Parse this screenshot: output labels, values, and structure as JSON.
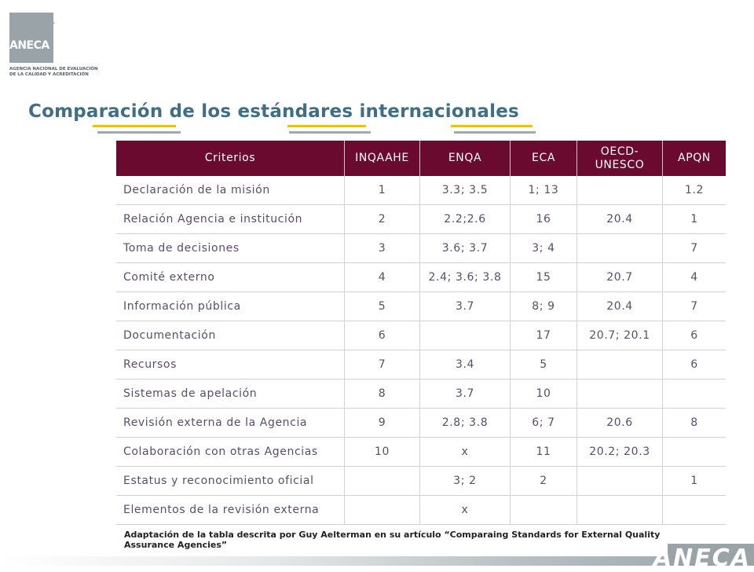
{
  "logo": {
    "name": "ANECA",
    "subtitle_lines": [
      "AGENCIA NACIONAL DE EVALUACIÓN",
      "DE LA CALIDAD Y ACREDITACIÓN"
    ]
  },
  "title": "Comparación de los estándares internacionales",
  "table": {
    "headers": [
      "Criterios",
      "INQAAHE",
      "ENQA",
      "ECA",
      "OECD-\nUNESCO",
      "APQN"
    ],
    "rows": [
      [
        "Declaración de la misión",
        "1",
        "3.3; 3.5",
        "1; 13",
        "",
        "1.2"
      ],
      [
        "Relación Agencia e institución",
        "2",
        "2.2;2.6",
        "16",
        "20.4",
        "1"
      ],
      [
        "Toma de decisiones",
        "3",
        "3.6; 3.7",
        "3; 4",
        "",
        "7"
      ],
      [
        "Comité externo",
        "4",
        "2.4; 3.6; 3.8",
        "15",
        "20.7",
        "4"
      ],
      [
        "Información pública",
        "5",
        "3.7",
        "8; 9",
        "20.4",
        "7"
      ],
      [
        "Documentación",
        "6",
        "",
        "17",
        "20.7; 20.1",
        "6"
      ],
      [
        "Recursos",
        "7",
        "3.4",
        "5",
        "",
        "6"
      ],
      [
        "Sistemas de apelación",
        "8",
        "3.7",
        "10",
        "",
        ""
      ],
      [
        "Revisión externa de la Agencia",
        "9",
        "2.8; 3.8",
        "6; 7",
        "20.6",
        "8"
      ],
      [
        "Colaboración con otras Agencias",
        "10",
        "x",
        "11",
        "20.2; 20.3",
        ""
      ],
      [
        "Estatus y reconocimiento oficial",
        "",
        "3; 2",
        "2",
        "",
        "1"
      ],
      [
        "Elementos de la revisión externa",
        "",
        "x",
        "",
        "",
        ""
      ]
    ]
  },
  "footnote": "Adaptación de la tabla descrita por Guy Aelterman en su artículo “Comparaing Standards for External Quality Assurance Agencies”",
  "bottom_logo": "ANECA",
  "colors": {
    "header_bg": "#6a0a2e",
    "title": "#3f6e87",
    "accent_gold": "#f2c200",
    "accent_grey": "#a6a9ab",
    "logo_grey": "#9aa3a8"
  }
}
